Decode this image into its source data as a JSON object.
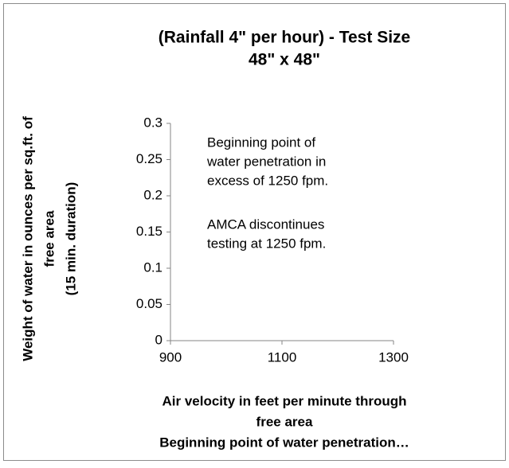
{
  "chart_data": {
    "type": "scatter",
    "title": [
      "(Rainfall 4\" per hour) - Test Size",
      "48\" x 48\""
    ],
    "y_label": [
      "Weight of water in ounces per sq.ft. of",
      "free area",
      "(15 min. duration)"
    ],
    "x_label": [
      "Air velocity in feet per minute through",
      "free area",
      "Beginning point of water penetration…"
    ],
    "annotations": [
      [
        "Beginning point of",
        "water penetration in",
        "excess of 1250 fpm."
      ],
      [
        "AMCA discontinues",
        "testing at 1250 fpm."
      ]
    ],
    "xlim": [
      900,
      1300
    ],
    "xticks": [
      900,
      1100,
      1300
    ],
    "ylim": [
      0,
      0.3
    ],
    "yticks": [
      0,
      0.05,
      0.1,
      0.15,
      0.2,
      0.25,
      0.3
    ],
    "series": []
  }
}
